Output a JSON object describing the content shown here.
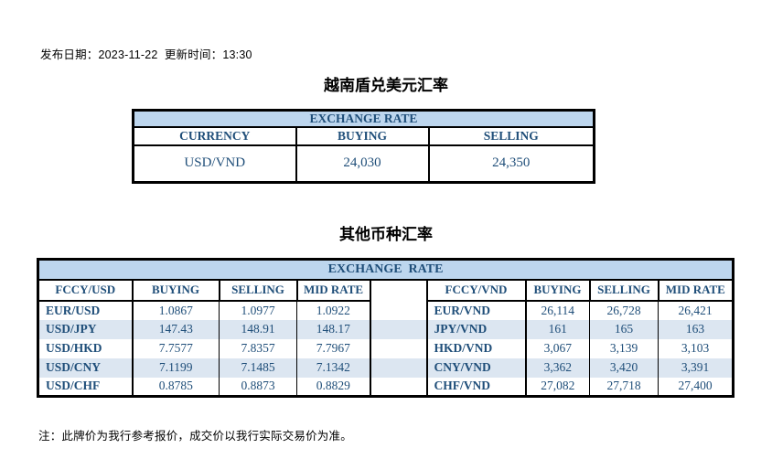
{
  "meta": {
    "dateline": "发布日期：2023-11-22  更新时间：13:30"
  },
  "usd_table": {
    "title": "越南盾兑美元汇率",
    "header": "EXCHANGE RATE",
    "columns": [
      "CURRENCY",
      "BUYING",
      "SELLING"
    ],
    "rows": [
      [
        "USD/VND",
        "24,030",
        "24,350"
      ]
    ]
  },
  "other_table": {
    "title": "其他币种汇率",
    "header": "EXCHANGE  RATE",
    "left_columns": [
      "FCCY/USD",
      "BUYING",
      "SELLING",
      "MID RATE"
    ],
    "right_columns": [
      "FCCY/VND",
      "BUYING",
      "SELLING",
      "MID RATE"
    ],
    "rows": [
      {
        "left": [
          "EUR/USD",
          "1.0867",
          "1.0977",
          "1.0922"
        ],
        "right": [
          "EUR/VND",
          "26,114",
          "26,728",
          "26,421"
        ]
      },
      {
        "left": [
          "USD/JPY",
          "147.43",
          "148.91",
          "148.17"
        ],
        "right": [
          "JPY/VND",
          "161",
          "165",
          "163"
        ]
      },
      {
        "left": [
          "USD/HKD",
          "7.7577",
          "7.8357",
          "7.7967"
        ],
        "right": [
          "HKD/VND",
          "3,067",
          "3,139",
          "3,103"
        ]
      },
      {
        "left": [
          "USD/CNY",
          "7.1199",
          "7.1485",
          "7.1342"
        ],
        "right": [
          "CNY/VND",
          "3,362",
          "3,420",
          "3,391"
        ]
      },
      {
        "left": [
          "USD/CHF",
          "0.8785",
          "0.8873",
          "0.8829"
        ],
        "right": [
          "CHF/VND",
          "27,082",
          "27,718",
          "27,400"
        ]
      }
    ]
  },
  "note": "注：此牌价为我行参考报价，成交价以我行实际交易价为准。",
  "colors": {
    "accent_navy": "#1F4E79",
    "header_blue": "#BDD6EE",
    "band_blue": "#DCE6F1",
    "border_black": "#000000"
  }
}
